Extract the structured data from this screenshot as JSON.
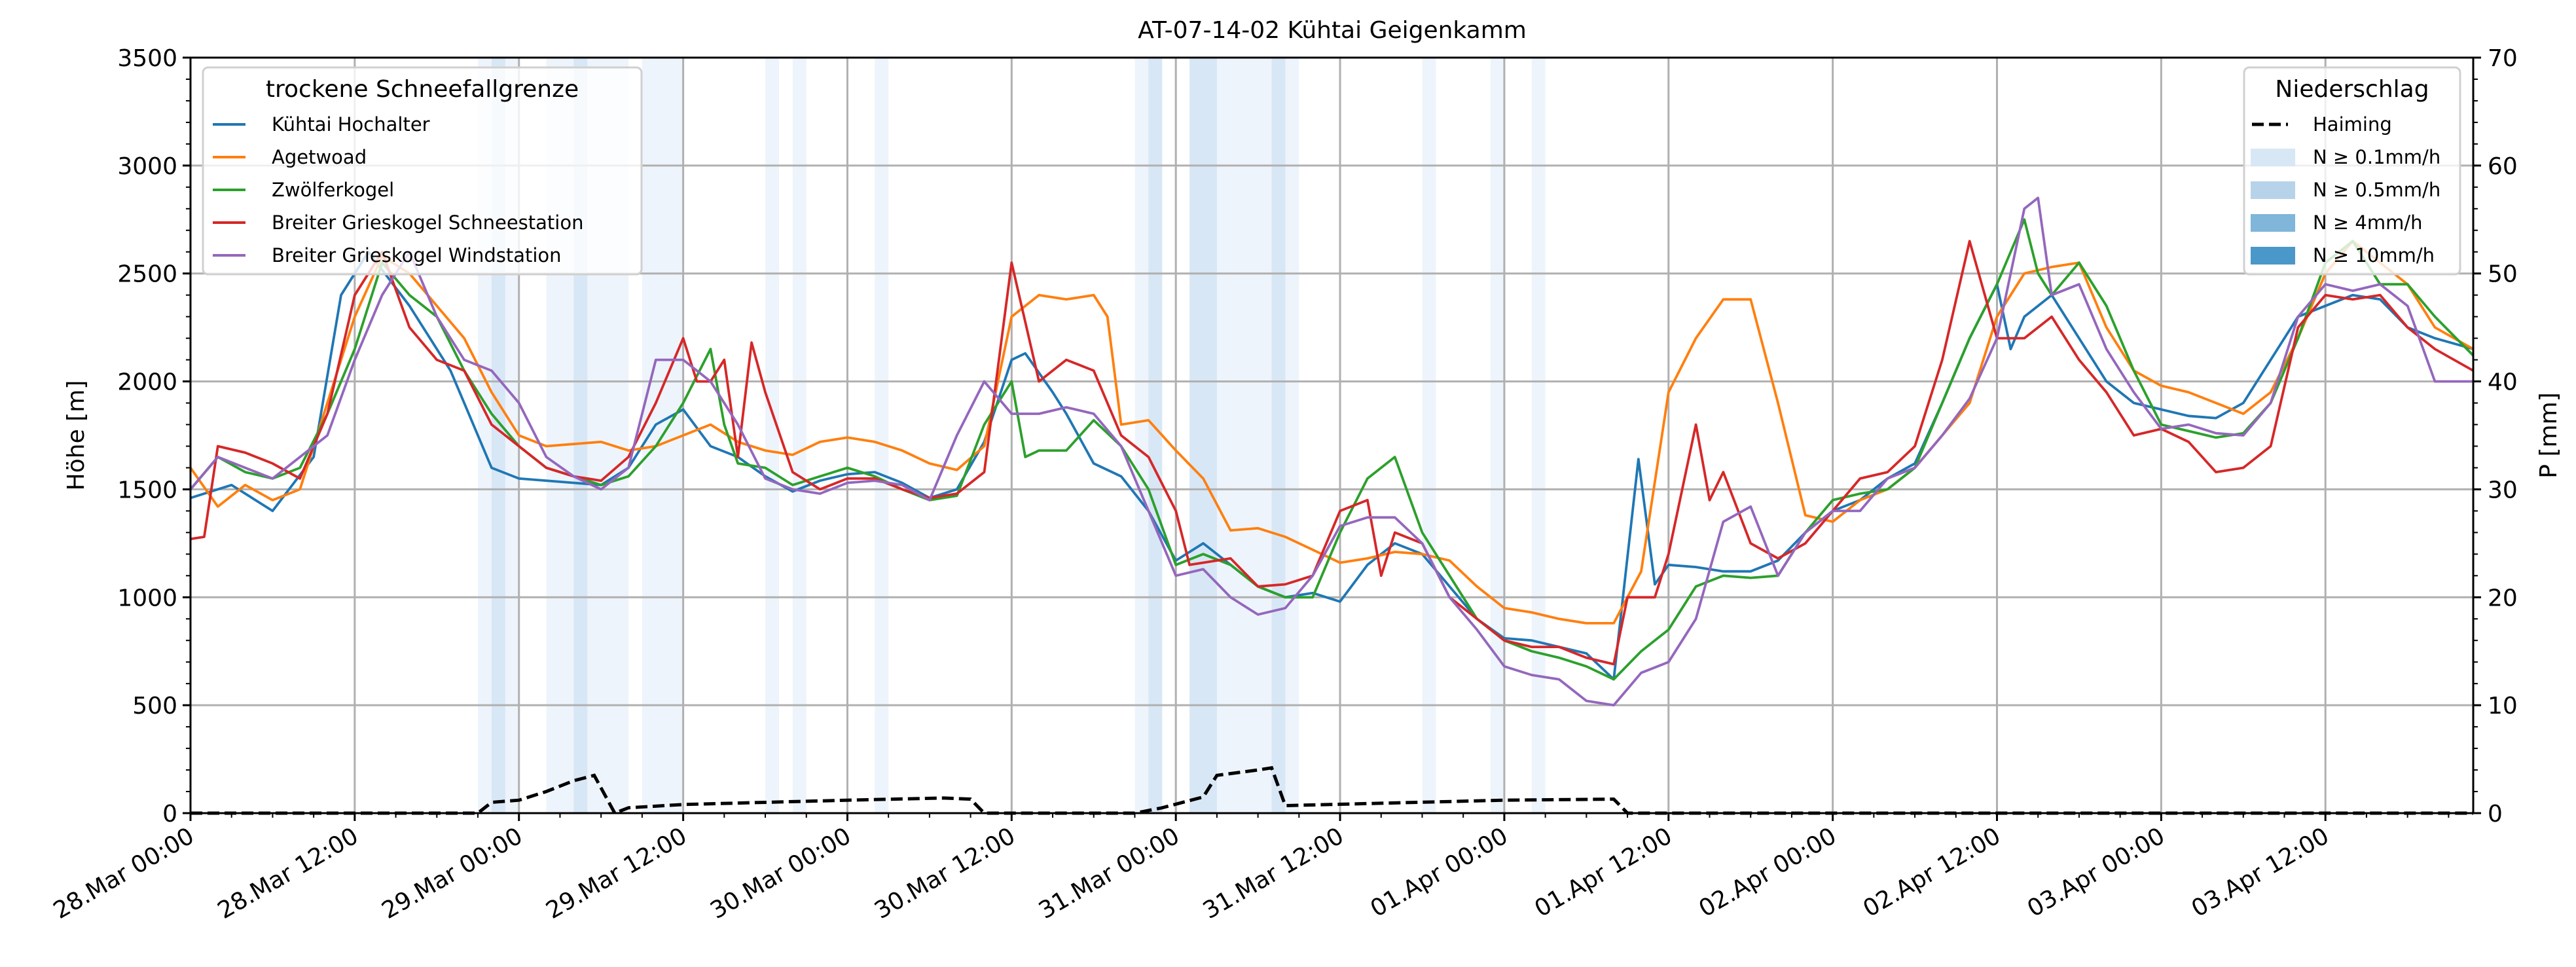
{
  "chart_data": {
    "type": "line",
    "title": "AT-07-14-02 Kühtai Geigenkamm",
    "xlabel": "",
    "ylabel": "Höhe [m]",
    "ylabel_right": "P [mm]",
    "x_unit": "hours since 28.Mar 00:00",
    "xlim": [
      0,
      166.8
    ],
    "ylim": [
      0,
      3500
    ],
    "ylim_right": [
      0,
      70
    ],
    "grid": true,
    "yticks": [
      "0",
      "500",
      "1000",
      "1500",
      "2000",
      "2500",
      "3000",
      "3500"
    ],
    "yticks_right": [
      "0",
      "10",
      "20",
      "30",
      "40",
      "50",
      "60",
      "70"
    ],
    "xticks": [
      "28.Mar 00:00",
      "28.Mar 12:00",
      "29.Mar 00:00",
      "29.Mar 12:00",
      "30.Mar 00:00",
      "30.Mar 12:00",
      "31.Mar 00:00",
      "31.Mar 12:00",
      "01.Apr 00:00",
      "01.Apr 12:00",
      "02.Apr 00:00",
      "02.Apr 12:00",
      "03.Apr 00:00",
      "03.Apr 12:00"
    ],
    "legend_left": {
      "title": "trockene Schneefallgrenze",
      "placement": "top-left"
    },
    "legend_right": {
      "title": "Niederschlag",
      "placement": "top-right",
      "entries": [
        "Haiming",
        "N ≥ 0.1mm/h",
        "N ≥ 0.5mm/h",
        "N ≥ 4mm/h",
        "N ≥ 10mm/h"
      ],
      "colors": [
        "#000000",
        "#d8e7f5",
        "#b7d3ea",
        "#7fb6d9",
        "#4a97c9"
      ]
    },
    "series": [
      {
        "name": "Kühtai Hochalter",
        "color": "#1f77b4",
        "x": [
          0,
          3,
          6,
          9,
          11,
          13,
          16,
          19,
          20,
          22,
          24,
          28,
          30,
          32,
          34,
          36,
          38,
          40,
          42,
          44,
          46,
          48,
          50,
          52,
          54,
          56,
          58,
          60,
          61,
          63,
          64,
          66,
          68,
          70,
          72,
          74,
          76,
          78,
          80,
          82,
          84,
          86,
          88,
          90,
          92,
          94,
          96,
          98,
          100,
          102,
          104,
          105.8,
          107,
          108,
          110,
          112,
          114,
          116,
          118,
          120,
          122,
          124,
          126,
          128,
          130,
          132,
          133,
          134,
          136,
          138,
          140,
          142,
          144,
          146,
          148,
          150,
          152,
          154,
          156,
          158,
          160,
          162,
          164,
          166.8
        ],
        "y": [
          1460,
          1520,
          1400,
          1650,
          2400,
          2600,
          2350,
          2050,
          1900,
          1600,
          1550,
          1530,
          1520,
          1600,
          1800,
          1870,
          1700,
          1650,
          1560,
          1490,
          1540,
          1570,
          1580,
          1530,
          1460,
          1500,
          1720,
          2100,
          2130,
          1950,
          1850,
          1620,
          1560,
          1400,
          1170,
          1250,
          1150,
          1050,
          1000,
          1020,
          980,
          1150,
          1250,
          1200,
          1050,
          900,
          810,
          800,
          770,
          740,
          620,
          1640,
          1060,
          1150,
          1140,
          1120,
          1120,
          1170,
          1300,
          1400,
          1450,
          1550,
          1620,
          1900,
          2200,
          2450,
          2150,
          2300,
          2400,
          2200,
          2000,
          1900,
          1870,
          1840,
          1830,
          1900,
          2100,
          2300,
          2350,
          2400,
          2380,
          2250,
          2200,
          2150
        ]
      },
      {
        "name": "Agetwoad",
        "color": "#ff7f0e",
        "x": [
          0,
          2,
          4,
          6,
          8,
          10,
          12,
          14,
          16,
          18,
          20,
          22,
          24,
          26,
          28,
          30,
          32,
          34,
          36,
          38,
          40,
          42,
          44,
          46,
          48,
          50,
          52,
          54,
          56,
          58,
          60,
          62,
          64,
          66,
          67,
          68,
          70,
          72,
          74,
          76,
          78,
          80,
          82,
          84,
          86,
          88,
          90,
          92,
          94,
          96,
          98,
          100,
          102,
          104,
          106,
          108,
          110,
          112,
          114,
          116,
          118,
          120,
          122,
          124,
          126,
          128,
          130,
          132,
          134,
          136,
          138,
          140,
          142,
          144,
          146,
          148,
          150,
          152,
          154,
          156,
          158,
          160,
          162,
          164,
          166.8
        ],
        "y": [
          1600,
          1420,
          1520,
          1450,
          1500,
          1900,
          2300,
          2580,
          2500,
          2350,
          2200,
          1950,
          1750,
          1700,
          1710,
          1720,
          1680,
          1700,
          1750,
          1800,
          1720,
          1680,
          1660,
          1720,
          1740,
          1720,
          1680,
          1620,
          1590,
          1700,
          2300,
          2400,
          2380,
          2400,
          2300,
          1800,
          1820,
          1680,
          1550,
          1310,
          1320,
          1280,
          1220,
          1160,
          1180,
          1210,
          1200,
          1170,
          1050,
          950,
          930,
          900,
          880,
          880,
          1120,
          1950,
          2200,
          2380,
          2380,
          1900,
          1380,
          1350,
          1450,
          1500,
          1600,
          1750,
          1900,
          2300,
          2500,
          2530,
          2550,
          2250,
          2050,
          1980,
          1950,
          1900,
          1850,
          1950,
          2200,
          2500,
          2650,
          2550,
          2450,
          2250,
          2150
        ]
      },
      {
        "name": "Zwölferkogel",
        "color": "#2ca02c",
        "x": [
          0,
          2,
          4,
          6,
          8,
          10,
          12,
          14,
          16,
          18,
          20,
          22,
          24,
          26,
          28,
          30,
          32,
          34,
          36,
          38,
          39,
          40,
          42,
          44,
          46,
          48,
          50,
          52,
          54,
          56,
          58,
          60,
          61,
          62,
          64,
          66,
          68,
          70,
          72,
          74,
          76,
          78,
          80,
          82,
          84,
          86,
          88,
          90,
          92,
          94,
          96,
          98,
          100,
          102,
          104,
          106,
          108,
          110,
          112,
          114,
          116,
          118,
          120,
          122,
          124,
          126,
          128,
          130,
          132,
          134,
          135,
          136,
          138,
          140,
          142,
          144,
          146,
          148,
          150,
          152,
          154,
          156,
          158,
          160,
          162,
          164,
          166.8
        ],
        "y": [
          1500,
          1650,
          1580,
          1550,
          1600,
          1850,
          2150,
          2550,
          2400,
          2300,
          2050,
          1850,
          1700,
          1600,
          1560,
          1520,
          1560,
          1700,
          1900,
          2150,
          1800,
          1620,
          1600,
          1520,
          1560,
          1600,
          1560,
          1500,
          1450,
          1470,
          1800,
          2000,
          1650,
          1680,
          1680,
          1820,
          1700,
          1500,
          1150,
          1200,
          1150,
          1050,
          1000,
          1000,
          1300,
          1550,
          1650,
          1300,
          1100,
          900,
          800,
          750,
          720,
          680,
          620,
          750,
          850,
          1050,
          1100,
          1090,
          1100,
          1300,
          1450,
          1480,
          1500,
          1600,
          1900,
          2200,
          2450,
          2750,
          2500,
          2400,
          2550,
          2350,
          2050,
          1800,
          1770,
          1740,
          1760,
          1900,
          2200,
          2550,
          2650,
          2450,
          2450,
          2300,
          2120
        ]
      },
      {
        "name": "Breiter Grieskogel Schneestation",
        "color": "#d62728",
        "x": [
          0,
          1,
          2,
          4,
          6,
          8,
          10,
          12,
          14,
          16,
          18,
          20,
          22,
          24,
          26,
          28,
          30,
          32,
          34,
          36,
          37,
          38,
          39,
          40,
          41,
          42,
          44,
          46,
          48,
          50,
          52,
          54,
          56,
          58,
          60,
          62,
          64,
          66,
          68,
          70,
          72,
          73,
          76,
          78,
          80,
          82,
          84,
          86,
          87,
          88,
          90,
          92,
          94,
          96,
          98,
          100,
          102,
          104,
          105,
          107,
          108,
          110,
          111,
          112,
          114,
          116,
          118,
          120,
          122,
          124,
          126,
          128,
          130,
          132,
          134,
          136,
          138,
          140,
          142,
          144,
          146,
          148,
          150,
          152,
          154,
          156,
          158,
          160,
          162,
          164,
          166.8
        ],
        "y": [
          1270,
          1280,
          1700,
          1670,
          1620,
          1550,
          1850,
          2400,
          2600,
          2250,
          2100,
          2050,
          1800,
          1700,
          1600,
          1560,
          1540,
          1650,
          1900,
          2200,
          2000,
          2000,
          2100,
          1650,
          2180,
          1950,
          1580,
          1500,
          1550,
          1550,
          1500,
          1460,
          1480,
          1580,
          2550,
          2000,
          2100,
          2050,
          1750,
          1650,
          1400,
          1150,
          1180,
          1050,
          1060,
          1100,
          1400,
          1450,
          1100,
          1300,
          1250,
          1000,
          900,
          800,
          770,
          770,
          720,
          690,
          1000,
          1000,
          1200,
          1800,
          1450,
          1580,
          1250,
          1180,
          1250,
          1400,
          1550,
          1580,
          1700,
          2100,
          2650,
          2200,
          2200,
          2300,
          2100,
          1950,
          1750,
          1780,
          1720,
          1580,
          1600,
          1700,
          2250,
          2400,
          2380,
          2400,
          2250,
          2150,
          2050
        ]
      },
      {
        "name": "Breiter Grieskogel Windstation",
        "color": "#9467bd",
        "x": [
          0,
          2,
          4,
          6,
          8,
          10,
          12,
          14,
          16,
          18,
          20,
          22,
          24,
          26,
          28,
          30,
          32,
          34,
          36,
          38,
          40,
          42,
          44,
          46,
          48,
          50,
          52,
          54,
          56,
          58,
          60,
          62,
          64,
          66,
          68,
          70,
          72,
          74,
          76,
          78,
          80,
          82,
          84,
          86,
          88,
          90,
          92,
          94,
          96,
          98,
          100,
          102,
          104,
          106,
          108,
          110,
          112,
          114,
          116,
          118,
          120,
          122,
          124,
          126,
          128,
          130,
          132,
          134,
          135,
          136,
          138,
          140,
          142,
          144,
          146,
          148,
          150,
          152,
          154,
          156,
          158,
          160,
          162,
          164,
          166.8
        ],
        "y": [
          1500,
          1650,
          1600,
          1550,
          1650,
          1750,
          2100,
          2400,
          2600,
          2300,
          2100,
          2050,
          1900,
          1650,
          1560,
          1500,
          1600,
          2100,
          2100,
          2000,
          1800,
          1550,
          1500,
          1480,
          1530,
          1540,
          1520,
          1450,
          1750,
          2000,
          1850,
          1850,
          1880,
          1850,
          1700,
          1400,
          1100,
          1130,
          1000,
          920,
          950,
          1100,
          1330,
          1370,
          1370,
          1250,
          1000,
          850,
          680,
          640,
          620,
          520,
          500,
          650,
          700,
          900,
          1350,
          1420,
          1100,
          1300,
          1400,
          1400,
          1550,
          1600,
          1750,
          1920,
          2200,
          2800,
          2850,
          2400,
          2450,
          2150,
          1950,
          1780,
          1800,
          1760,
          1750,
          1900,
          2300,
          2450,
          2420,
          2450,
          2350,
          2000,
          2000
        ]
      }
    ],
    "precip_line": {
      "name": "Haiming",
      "color": "#000000",
      "axis": "right",
      "x": [
        0,
        21,
        22,
        24,
        26,
        28,
        29.5,
        31,
        32,
        36,
        48,
        55,
        57,
        58,
        69,
        71,
        74,
        75,
        78,
        79,
        80,
        96,
        104,
        105,
        166.8
      ],
      "y": [
        0,
        0,
        1,
        1.2,
        2,
        3,
        3.5,
        0,
        0.5,
        0.8,
        1.2,
        1.4,
        1.3,
        0,
        0,
        0.5,
        1.5,
        3.5,
        4,
        4.2,
        0.7,
        1.2,
        1.3,
        0,
        0
      ]
    },
    "precip_bands": [
      {
        "start": 21,
        "end": 24,
        "level": 0.1
      },
      {
        "start": 22,
        "end": 23,
        "level": 0.5
      },
      {
        "start": 26,
        "end": 32,
        "level": 0.1
      },
      {
        "start": 28,
        "end": 29,
        "level": 0.5
      },
      {
        "start": 33,
        "end": 36,
        "level": 0.1
      },
      {
        "start": 42,
        "end": 43,
        "level": 0.1
      },
      {
        "start": 44,
        "end": 45,
        "level": 0.1
      },
      {
        "start": 50,
        "end": 51,
        "level": 0.1
      },
      {
        "start": 69,
        "end": 71,
        "level": 0.1
      },
      {
        "start": 70,
        "end": 71,
        "level": 0.5
      },
      {
        "start": 73,
        "end": 81,
        "level": 0.1
      },
      {
        "start": 73,
        "end": 75,
        "level": 0.5
      },
      {
        "start": 79,
        "end": 80,
        "level": 0.5
      },
      {
        "start": 90,
        "end": 91,
        "level": 0.1
      },
      {
        "start": 95,
        "end": 96,
        "level": 0.1
      },
      {
        "start": 98,
        "end": 99,
        "level": 0.1
      }
    ]
  }
}
